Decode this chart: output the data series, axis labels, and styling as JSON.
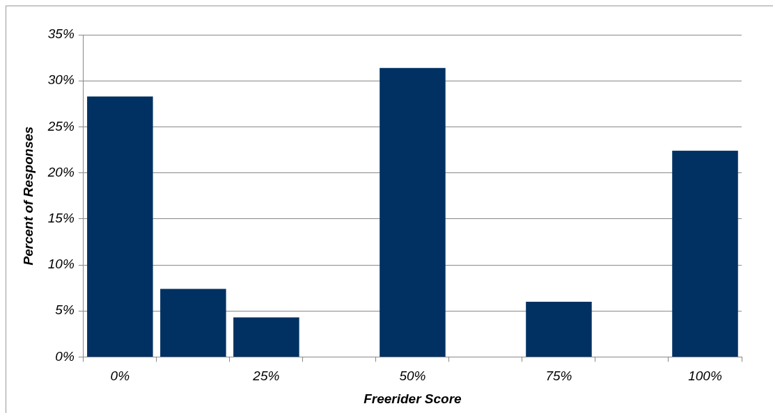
{
  "chart_data": {
    "type": "bar",
    "xlabel": "Freerider Score",
    "ylabel": "Percent of Responses",
    "categories": [
      "0%",
      null,
      "25%",
      null,
      "50%",
      null,
      "75%",
      null,
      "100%"
    ],
    "values": [
      28.3,
      7.4,
      4.3,
      null,
      31.4,
      null,
      6.0,
      null,
      22.4
    ],
    "color": "#003162",
    "ylim": [
      0,
      35
    ],
    "yticks": [
      {
        "value": 0,
        "label": "0%"
      },
      {
        "value": 5,
        "label": "5%"
      },
      {
        "value": 10,
        "label": "10%"
      },
      {
        "value": 15,
        "label": "15%"
      },
      {
        "value": 20,
        "label": "20%"
      },
      {
        "value": 25,
        "label": "25%"
      },
      {
        "value": 30,
        "label": "30%"
      },
      {
        "value": 35,
        "label": "35%"
      }
    ],
    "grid": "y",
    "legend": false
  }
}
